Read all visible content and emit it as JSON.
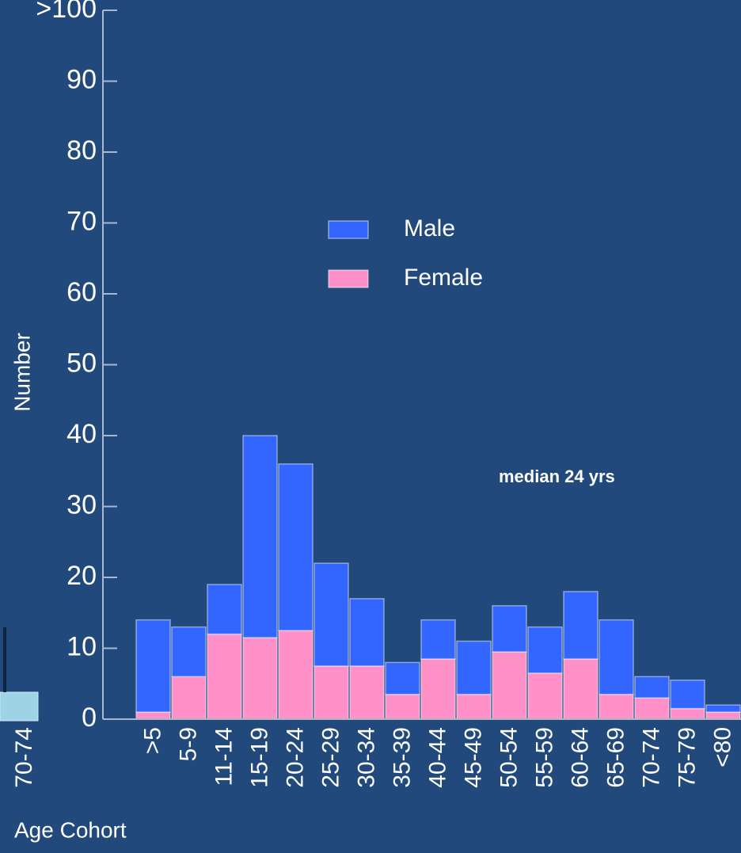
{
  "chart_data": {
    "type": "stacked_bar",
    "ylabel": "Number",
    "xlabel": "Age Cohort",
    "annotation": "median 24 yrs",
    "categories": [
      ">5",
      "5-9",
      "11-14",
      "15-19",
      "20-24",
      "25-29",
      "30-34",
      "35-39",
      "40-44",
      "45-49",
      "50-54",
      "55-59",
      "60-64",
      "65-69",
      "70-74",
      "75-79",
      "<80"
    ],
    "series": [
      {
        "name": "Male",
        "color": "#3366ff",
        "values": [
          13,
          7,
          7,
          28.5,
          23.5,
          14.5,
          9.5,
          4.5,
          5.5,
          7.5,
          6.5,
          6.5,
          9.5,
          10.5,
          3,
          4,
          1
        ]
      },
      {
        "name": "Female",
        "color": "#ff90c8",
        "values": [
          1,
          6,
          12,
          11.5,
          12.5,
          7.5,
          7.5,
          3.5,
          8.5,
          3.5,
          9.5,
          6.5,
          8.5,
          3.5,
          3,
          1.5,
          1
        ]
      }
    ],
    "ylim": [
      0,
      100
    ],
    "yticks": [
      0,
      10,
      20,
      30,
      40,
      50,
      60,
      70,
      80,
      90,
      {
        "value": 100,
        "label": ">100"
      }
    ],
    "legend": "center"
  },
  "fragment": {
    "category": "70-74"
  }
}
